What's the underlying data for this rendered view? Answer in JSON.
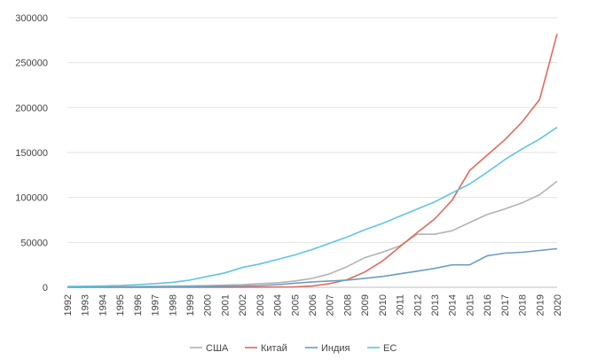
{
  "chart_data": {
    "type": "line",
    "title": "",
    "xlabel": "",
    "ylabel": "",
    "x": [
      "1992",
      "1993",
      "1994",
      "1995",
      "1996",
      "1997",
      "1998",
      "1999",
      "2000",
      "2001",
      "2002",
      "2003",
      "2004",
      "2005",
      "2006",
      "2007",
      "2008",
      "2009",
      "2010",
      "2011",
      "2012",
      "2013",
      "2014",
      "2015",
      "2016",
      "2017",
      "2018",
      "2019",
      "2020"
    ],
    "ylim": [
      0,
      300000
    ],
    "yticks": [
      0,
      50000,
      100000,
      150000,
      200000,
      250000,
      300000
    ],
    "ytick_labels": [
      "0",
      "50000",
      "100000",
      "150000",
      "200000",
      "250000",
      "300000"
    ],
    "grid": "horizontal",
    "legend_position": "bottom",
    "series": [
      {
        "name": "США",
        "color": "#b3b3b3",
        "values": [
          500,
          600,
          700,
          800,
          1000,
          1200,
          1400,
          1600,
          2000,
          2500,
          3000,
          4000,
          5000,
          7000,
          10000,
          15000,
          23000,
          33000,
          39000,
          46000,
          59000,
          59000,
          63000,
          72000,
          81000,
          87000,
          94000,
          103000,
          118000
        ]
      },
      {
        "name": "Китай",
        "color": "#e06a5c",
        "values": [
          0,
          0,
          0,
          0,
          0,
          0,
          0,
          0,
          0,
          0,
          100,
          200,
          300,
          500,
          1500,
          4000,
          8500,
          17000,
          29000,
          45000,
          61000,
          76000,
          97000,
          130000,
          147000,
          164000,
          184000,
          209000,
          282000
        ]
      },
      {
        "name": "Индия",
        "color": "#6a9ec4",
        "values": [
          0,
          0,
          0,
          0,
          100,
          200,
          500,
          800,
          1000,
          1200,
          1500,
          2000,
          3000,
          4500,
          6000,
          7000,
          8000,
          10000,
          12000,
          15000,
          18000,
          21000,
          25000,
          25000,
          35000,
          38000,
          39000,
          41000,
          43000
        ]
      },
      {
        "name": "ЕС",
        "color": "#5fc6df",
        "values": [
          1000,
          1200,
          1500,
          2000,
          3000,
          4000,
          5500,
          8000,
          12000,
          16000,
          22000,
          26000,
          31000,
          36000,
          42000,
          49000,
          56000,
          64000,
          71000,
          79000,
          87000,
          95000,
          105000,
          115000,
          128000,
          142000,
          154000,
          165000,
          178000
        ]
      }
    ]
  }
}
